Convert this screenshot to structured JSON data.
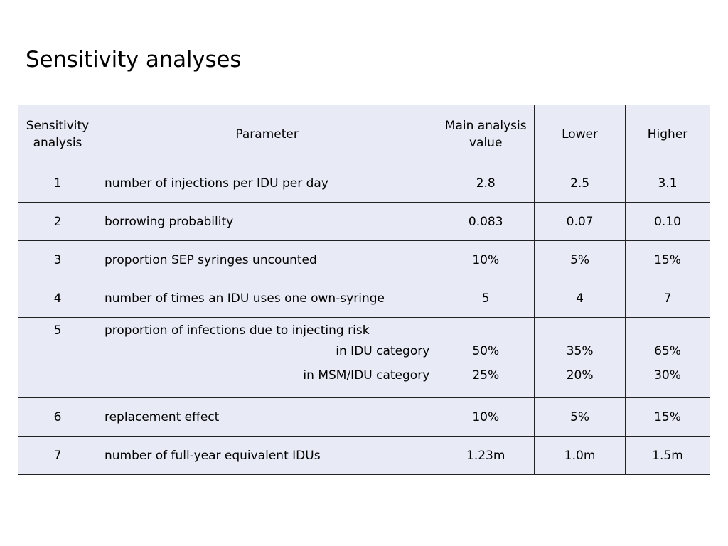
{
  "title": "Sensitivity analyses",
  "table": {
    "headers": {
      "sensitivity_analysis": "Sensitivity analysis",
      "parameter": "Parameter",
      "main_analysis_value": "Main analysis value",
      "lower": "Lower",
      "higher": "Higher"
    },
    "rows": [
      {
        "num": "1",
        "parameter": "number of injections per IDU per day",
        "main": "2.8",
        "lower": "2.5",
        "higher": "3.1"
      },
      {
        "num": "2",
        "parameter": "borrowing probability",
        "main": "0.083",
        "lower": "0.07",
        "higher": "0.10"
      },
      {
        "num": "3",
        "parameter": "proportion SEP syringes uncounted",
        "main": "10%",
        "lower": "5%",
        "higher": "15%"
      },
      {
        "num": "4",
        "parameter": "number of times an IDU uses one own-syringe",
        "main": "5",
        "lower": "4",
        "higher": "7"
      }
    ],
    "row5": {
      "num": "5",
      "parameter": "proportion of infections due to injecting risk",
      "sub": [
        {
          "label": "in IDU category",
          "main": "50%",
          "lower": "35%",
          "higher": "65%"
        },
        {
          "label": "in MSM/IDU category",
          "main": "25%",
          "lower": "20%",
          "higher": "30%"
        }
      ]
    },
    "rows_after": [
      {
        "num": "6",
        "parameter": "replacement effect",
        "main": "10%",
        "lower": "5%",
        "higher": "15%"
      },
      {
        "num": "7",
        "parameter": "number of full-year equivalent IDUs",
        "main": "1.23m",
        "lower": "1.0m",
        "higher": "1.5m"
      }
    ]
  }
}
